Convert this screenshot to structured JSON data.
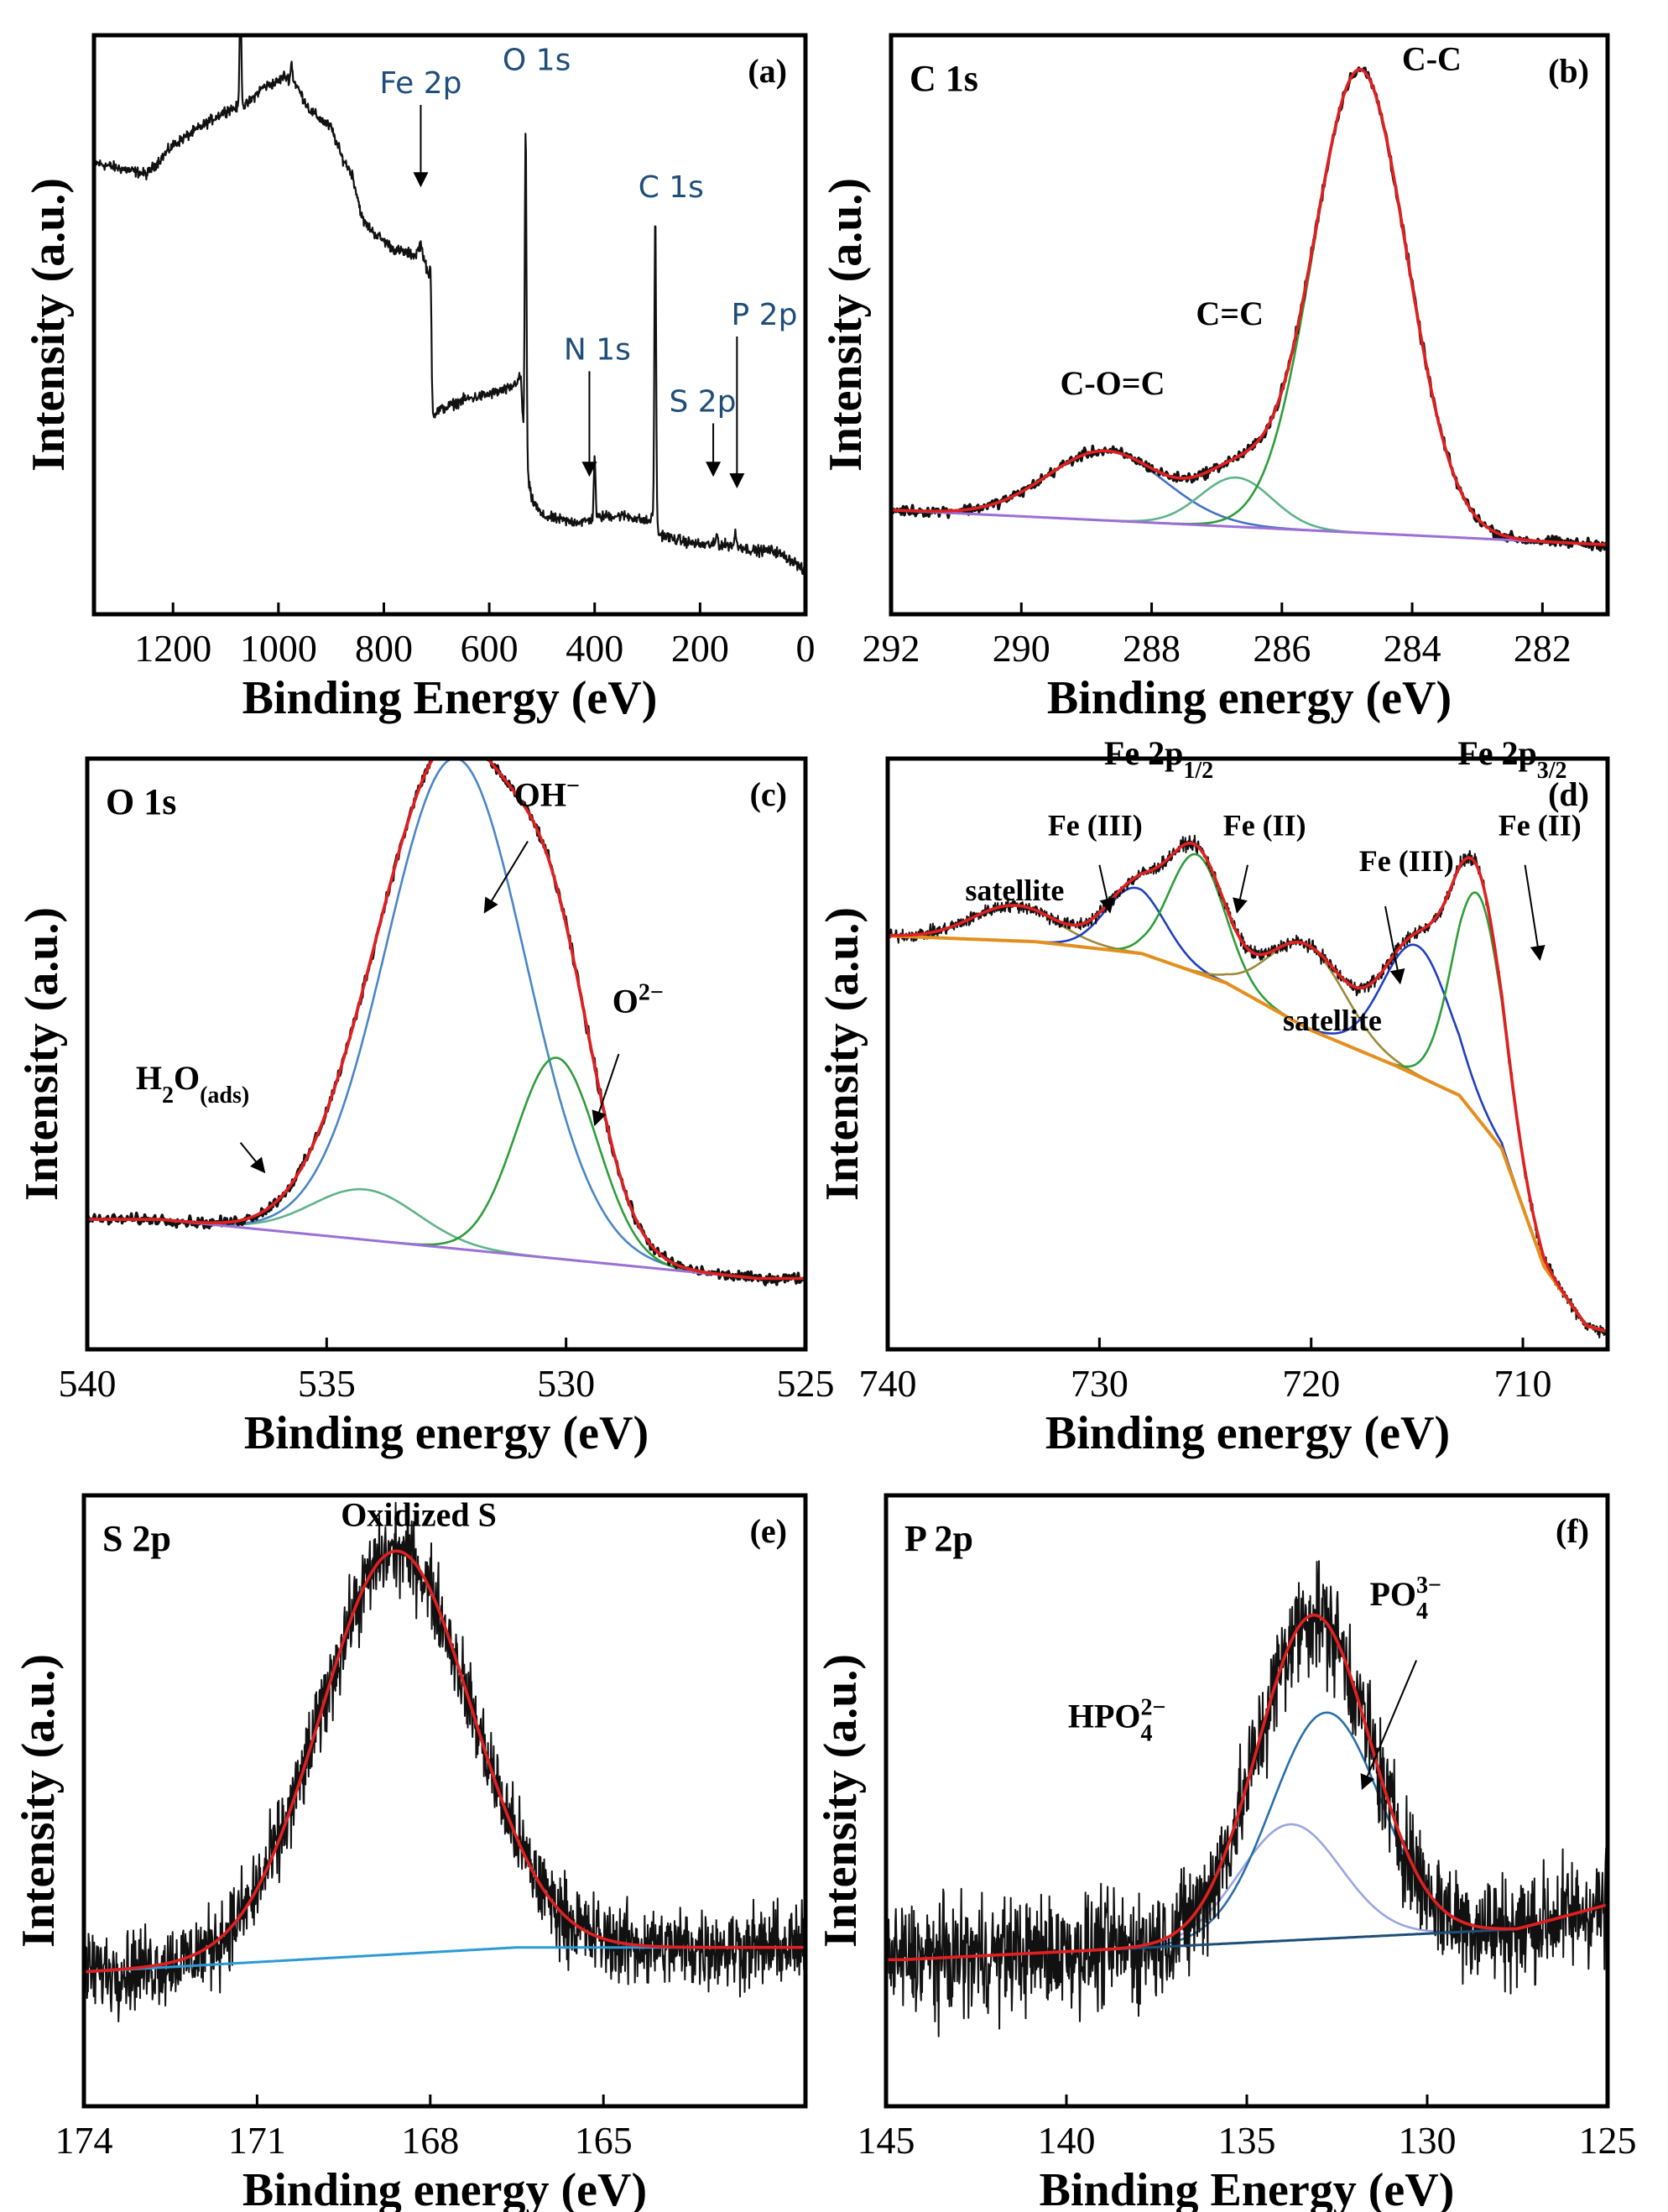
{
  "chart_data": [
    {
      "id": "a",
      "type": "line",
      "panel_label": "(a)",
      "title": "",
      "xlabel": "Binding Energy (eV)",
      "ylabel": "Intensity (a.u.)",
      "xlim": [
        1350,
        0
      ],
      "ylim": [
        0,
        100
      ],
      "xticks": [
        1200,
        1000,
        800,
        600,
        400,
        200,
        0
      ],
      "survey": [
        [
          1350,
          78
        ],
        [
          1300,
          77
        ],
        [
          1250,
          76
        ],
        [
          1220,
          79
        ],
        [
          1200,
          81
        ],
        [
          1150,
          84
        ],
        [
          1100,
          87
        ],
        [
          1060,
          88
        ],
        [
          1030,
          91
        ],
        [
          1000,
          92
        ],
        [
          990,
          93
        ],
        [
          970,
          92
        ],
        [
          940,
          87
        ],
        [
          900,
          84
        ],
        [
          880,
          79
        ],
        [
          860,
          76
        ],
        [
          840,
          68
        ],
        [
          820,
          66
        ],
        [
          780,
          63
        ],
        [
          740,
          62
        ],
        [
          730,
          64
        ],
        [
          720,
          60
        ],
        [
          712,
          57
        ],
        [
          709,
          34
        ],
        [
          700,
          35
        ],
        [
          650,
          37
        ],
        [
          600,
          38
        ],
        [
          560,
          39
        ],
        [
          540,
          41
        ],
        [
          533,
          27
        ],
        [
          520,
          20
        ],
        [
          500,
          17
        ],
        [
          450,
          16
        ],
        [
          420,
          16
        ],
        [
          380,
          17
        ],
        [
          340,
          17
        ],
        [
          300,
          16
        ],
        [
          286,
          17
        ],
        [
          280,
          14
        ],
        [
          250,
          13
        ],
        [
          200,
          12
        ],
        [
          160,
          12
        ],
        [
          133,
          12
        ],
        [
          100,
          11
        ],
        [
          60,
          11
        ],
        [
          40,
          10
        ],
        [
          20,
          9
        ],
        [
          0,
          7
        ]
      ],
      "peaks": [
        {
          "x": 1072,
          "h": 20
        },
        {
          "x": 975,
          "h": 3
        },
        {
          "x": 710,
          "h": 10
        },
        {
          "x": 531,
          "h": 58
        },
        {
          "x": 400,
          "h": 11
        },
        {
          "x": 285,
          "h": 53
        },
        {
          "x": 168,
          "h": 2
        },
        {
          "x": 133,
          "h": 2
        }
      ],
      "annotations": [
        {
          "text": "Fe 2p",
          "x": 730,
          "y": 90,
          "ax": 730,
          "ay": 74
        },
        {
          "text": "O 1s",
          "x": 510,
          "y": 94
        },
        {
          "text": "C 1s",
          "x": 255,
          "y": 72
        },
        {
          "text": "N 1s",
          "x": 395,
          "y": 44,
          "ax": 410,
          "ay": 24
        },
        {
          "text": "S 2p",
          "x": 195,
          "y": 35,
          "ax": 175,
          "ay": 24
        },
        {
          "text": "P 2p",
          "x": 78,
          "y": 50,
          "ax": 130,
          "ay": 22
        }
      ]
    },
    {
      "id": "b",
      "type": "line",
      "panel_label": "(b)",
      "title": "C 1s",
      "xlabel": "Binding energy (eV)",
      "ylabel": "Intensity (a.u.)",
      "xlim": [
        292,
        281
      ],
      "ylim": [
        0,
        100
      ],
      "xticks": [
        292,
        290,
        288,
        286,
        284,
        282
      ],
      "baseline": [
        [
          292,
          18
        ],
        [
          281,
          12
        ]
      ],
      "components": [
        {
          "name": "C-O=C",
          "center": 288.7,
          "height": 12,
          "sigma": 0.9,
          "color": "#4472c4"
        },
        {
          "name": "C=C",
          "center": 286.7,
          "height": 8.5,
          "sigma": 0.55,
          "color": "#5fb38a"
        },
        {
          "name": "C-C",
          "center": 284.8,
          "height": 80,
          "sigma": 0.72,
          "color": "#2e9e3a"
        }
      ],
      "labels": [
        {
          "text": "C-C",
          "x": 283.7,
          "y": 94
        },
        {
          "text": "C=C",
          "x": 286.8,
          "y": 50
        },
        {
          "text": "C-O=C",
          "x": 288.6,
          "y": 38
        }
      ]
    },
    {
      "id": "c",
      "type": "line",
      "panel_label": "(c)",
      "title": "O 1s",
      "xlabel": "Binding energy (eV)",
      "ylabel": "Intensity (a.u.)",
      "xlim": [
        540,
        525
      ],
      "ylim": [
        0,
        100
      ],
      "xticks": [
        540,
        535,
        530,
        525
      ],
      "baseline": [
        [
          538.5,
          22
        ],
        [
          526,
          12
        ]
      ],
      "components": [
        {
          "name": "H2O(ads)",
          "center": 534.2,
          "height": 8.5,
          "sigma": 1.1,
          "color": "#5fb38a"
        },
        {
          "name": "OH-",
          "center": 532.3,
          "height": 83,
          "sigma": 1.45,
          "color": "#4a86c5"
        },
        {
          "name": "O2-",
          "center": 530.2,
          "height": 34,
          "sigma": 0.85,
          "color": "#2e9e3a"
        }
      ],
      "labels": [
        {
          "text": "OH",
          "sup": "−",
          "x": 530.4,
          "y": 92,
          "ax": 531.7,
          "ay": 74,
          "lx": 530.8,
          "ly": 86
        },
        {
          "text": "O",
          "sup": "2−",
          "x": 528.5,
          "y": 57,
          "ax": 529.4,
          "ay": 38,
          "lx": 528.9,
          "ly": 50
        },
        {
          "text": "H",
          "sub": "2",
          "text2": "O",
          "sub2": "(ads)",
          "x": 537.8,
          "y": 44,
          "ax": 536.3,
          "ay": 30,
          "lx": 536.8,
          "ly": 35
        }
      ]
    },
    {
      "id": "d",
      "type": "line",
      "panel_label": "(d)",
      "title": "",
      "xlabel": "Binding energy (eV)",
      "ylabel": "Intensity (a.u.)",
      "xlim": [
        740,
        706
      ],
      "ylim": [
        0,
        100
      ],
      "xticks": [
        740,
        730,
        720,
        710
      ],
      "background": [
        [
          740,
          70
        ],
        [
          733,
          69
        ],
        [
          728,
          67
        ],
        [
          724,
          62
        ],
        [
          720,
          54
        ],
        [
          716,
          48
        ],
        [
          713,
          43
        ],
        [
          711,
          34
        ],
        [
          709,
          14
        ],
        [
          707,
          4
        ],
        [
          706,
          3
        ]
      ],
      "components": [
        {
          "name": "satellite",
          "center": 734,
          "height": 6,
          "sigma": 2.0,
          "color": "#9c8a3a"
        },
        {
          "name": "Fe (III) 2p1/2",
          "center": 728.3,
          "height": 11,
          "sigma": 1.4,
          "color": "#1f3fbf"
        },
        {
          "name": "Fe (II) 2p1/2",
          "center": 725.4,
          "height": 20,
          "sigma": 1.3,
          "color": "#2e9e3a"
        },
        {
          "name": "satellite",
          "center": 720.2,
          "height": 14,
          "sigma": 1.8,
          "color": "#9c8a3a"
        },
        {
          "name": "Fe (III) 2p3/2",
          "center": 715.0,
          "height": 22,
          "sigma": 1.6,
          "color": "#1f3fbf"
        },
        {
          "name": "Fe (II) 2p3/2",
          "center": 712.1,
          "height": 38,
          "sigma": 1.2,
          "color": "#2e9e3a"
        }
      ],
      "labels": [
        {
          "text": "Fe 2p",
          "sub": "1/2",
          "x": 727.2,
          "y": 99
        },
        {
          "text": "Fe 2p",
          "sub": "3/2",
          "x": 710.5,
          "y": 99
        },
        {
          "text": "Fe (III)",
          "x": 730.2,
          "y": 87,
          "ax": 729.5,
          "ay": 74,
          "lx": 730,
          "ly": 82
        },
        {
          "text": "Fe (II)",
          "x": 722.2,
          "y": 87,
          "ax": 723.5,
          "ay": 74,
          "lx": 723.0,
          "ly": 82
        },
        {
          "text": "Fe (III)",
          "x": 715.5,
          "y": 81,
          "ax": 715.8,
          "ay": 62,
          "lx": 716.5,
          "ly": 75
        },
        {
          "text": "Fe (II)",
          "x": 709.2,
          "y": 87,
          "ax": 709.2,
          "ay": 66,
          "lx": 709.9,
          "ly": 82
        },
        {
          "text": "satellite",
          "x": 734.0,
          "y": 76
        },
        {
          "text": "satellite",
          "x": 719.0,
          "y": 54
        }
      ]
    },
    {
      "id": "e",
      "type": "line",
      "panel_label": "(e)",
      "title": "S 2p",
      "xlabel": "Binding energy (eV)",
      "ylabel": "Intensity (a.u.)",
      "xlim": [
        174,
        161.5
      ],
      "ylim": [
        0,
        100
      ],
      "xticks": [
        174,
        171,
        168,
        165
      ],
      "baseline": [
        [
          174,
          22
        ],
        [
          166.5,
          26
        ],
        [
          161.5,
          26
        ]
      ],
      "components": [
        {
          "name": "Oxidized S",
          "center": 168.6,
          "height": 66,
          "sigma": 1.3,
          "color": "#d42020"
        }
      ],
      "labels": [
        {
          "text": "Oxidized S",
          "x": 168.2,
          "y": 95
        }
      ]
    },
    {
      "id": "f",
      "type": "line",
      "panel_label": "(f)",
      "title": "P 2p",
      "xlabel": "Binding Energy (eV)",
      "ylabel": "Intensity (a.u.)",
      "xlim": [
        145,
        125
      ],
      "ylim": [
        0,
        100
      ],
      "xticks": [
        145,
        140,
        135,
        130,
        125
      ],
      "baseline": [
        [
          144.5,
          24
        ],
        [
          127.5,
          29
        ],
        [
          125,
          33
        ]
      ],
      "components": [
        {
          "name": "HPO4 2-",
          "center": 133.8,
          "height": 19,
          "sigma": 1.4,
          "color": "#9aa6e0"
        },
        {
          "name": "PO4 3-",
          "center": 132.8,
          "height": 37,
          "sigma": 1.5,
          "color": "#2a6fa8"
        }
      ],
      "labels": [
        {
          "text": "HPO",
          "sub": "4",
          "sup": "2−",
          "x": 138.6,
          "y": 62
        },
        {
          "text": "PO",
          "sub": "4",
          "sup": "3−",
          "x": 130.6,
          "y": 82,
          "ax": 131.8,
          "ay": 52,
          "lx": 130.3,
          "ly": 73
        }
      ]
    }
  ]
}
